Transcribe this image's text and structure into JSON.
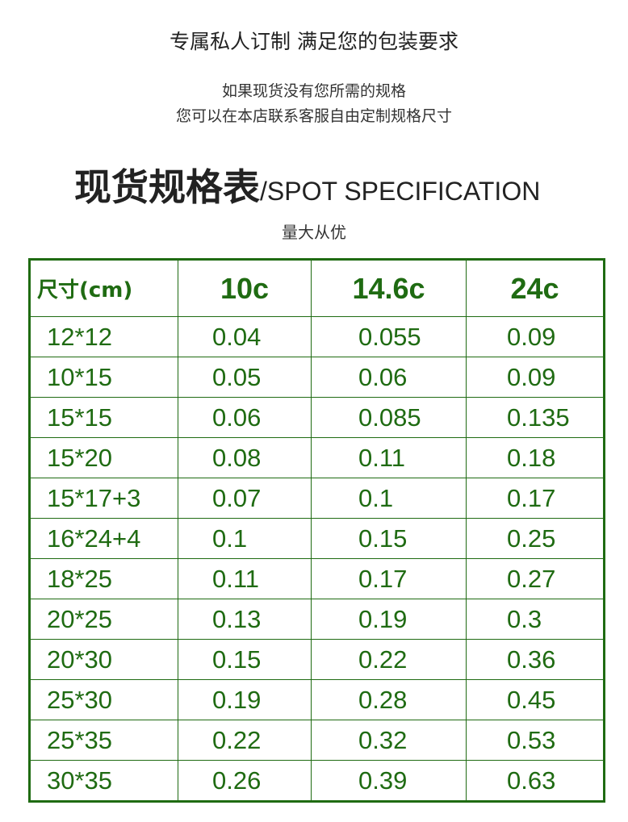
{
  "header": {
    "title": "专属私人订制  满足您的包装要求",
    "lines": [
      "如果现货没有您所需的规格",
      "您可以在本店联系客服自由定制规格尺寸"
    ]
  },
  "heading": {
    "zh": "现货规格表",
    "en": "/SPOT SPECIFICATION",
    "note": "量大从优"
  },
  "colors": {
    "accent": "#1f6b12"
  },
  "table": {
    "columns": [
      "尺寸(cm)",
      "10c",
      "14.6c",
      "24c"
    ],
    "rows": [
      [
        "12*12",
        "0.04",
        "0.055",
        "0.09"
      ],
      [
        "10*15",
        "0.05",
        "0.06",
        "0.09"
      ],
      [
        "15*15",
        "0.06",
        "0.085",
        "0.135"
      ],
      [
        "15*20",
        "0.08",
        "0.11",
        "0.18"
      ],
      [
        "15*17+3",
        "0.07",
        "0.1",
        "0.17"
      ],
      [
        "16*24+4",
        "0.1",
        "0.15",
        "0.25"
      ],
      [
        "18*25",
        "0.11",
        "0.17",
        "0.27"
      ],
      [
        "20*25",
        "0.13",
        "0.19",
        "0.3"
      ],
      [
        "20*30",
        "0.15",
        "0.22",
        "0.36"
      ],
      [
        "25*30",
        "0.19",
        "0.28",
        "0.45"
      ],
      [
        "25*35",
        "0.22",
        "0.32",
        "0.53"
      ],
      [
        "30*35",
        "0.26",
        "0.39",
        "0.63"
      ]
    ]
  }
}
